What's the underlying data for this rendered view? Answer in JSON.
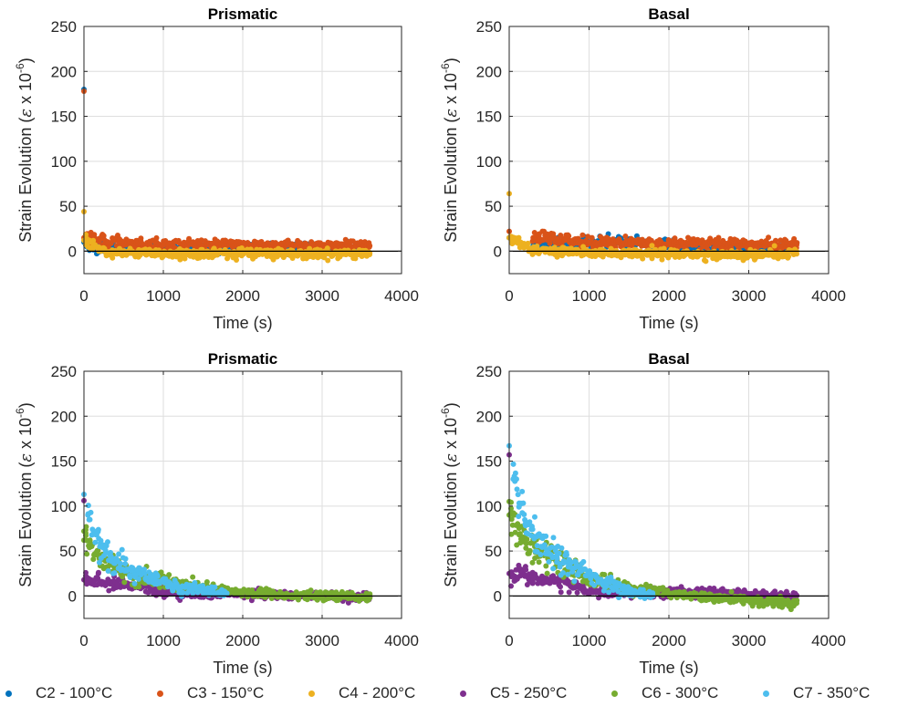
{
  "series_styles": [
    {
      "name": "C2 - 100°C",
      "color": "#0072BD"
    },
    {
      "name": "C3 - 150°C",
      "color": "#D95319"
    },
    {
      "name": "C4 - 200°C",
      "color": "#EDB120"
    },
    {
      "name": "C5 - 250°C",
      "color": "#7E2F8E"
    },
    {
      "name": "C6 - 300°C",
      "color": "#77AC30"
    },
    {
      "name": "C7 - 350°C",
      "color": "#4DBEEE"
    }
  ],
  "chart_data": [
    {
      "type": "scatter",
      "title": "Prismatic",
      "xlabel": "Time (s)",
      "ylabel_main": "Strain Evolution (",
      "ylabel_sym": "ε",
      "ylabel_mid": " x 10",
      "ylabel_exp": "-6",
      "ylabel_end": ")",
      "xlim": [
        0,
        4000
      ],
      "ylim": [
        -25,
        250
      ],
      "xticks": [
        0,
        1000,
        2000,
        3000,
        4000
      ],
      "yticks": [
        0,
        50,
        100,
        150,
        200,
        250
      ],
      "grid": true,
      "series": [
        {
          "name": "C2 - 100°C",
          "points": [
            [
              0,
              180
            ],
            [
              0,
              10
            ],
            [
              50,
              5
            ],
            [
              500,
              2
            ],
            [
              1500,
              3
            ],
            [
              2500,
              3
            ],
            [
              3500,
              3
            ]
          ]
        },
        {
          "name": "C3 - 150°C",
          "points": [
            [
              0,
              178
            ],
            [
              0,
              15
            ],
            [
              300,
              10
            ],
            [
              1000,
              7
            ],
            [
              2000,
              7
            ],
            [
              3000,
              6
            ],
            [
              3600,
              6
            ]
          ]
        },
        {
          "name": "C4 - 200°C",
          "points": [
            [
              0,
              44
            ],
            [
              0,
              12
            ],
            [
              300,
              -2
            ],
            [
              1000,
              -3
            ],
            [
              2000,
              -2
            ],
            [
              3000,
              -3
            ],
            [
              3600,
              -2
            ]
          ]
        }
      ]
    },
    {
      "type": "scatter",
      "title": "Basal",
      "xlabel": "Time (s)",
      "ylabel_main": "Strain Evolution (",
      "ylabel_sym": "ε",
      "ylabel_mid": " x 10",
      "ylabel_exp": "-6",
      "ylabel_end": ")",
      "xlim": [
        0,
        4000
      ],
      "ylim": [
        -25,
        250
      ],
      "xticks": [
        0,
        1000,
        2000,
        3000,
        4000
      ],
      "yticks": [
        0,
        50,
        100,
        150,
        200,
        250
      ],
      "grid": true,
      "series": [
        {
          "name": "C2 - 100°C",
          "points": [
            [
              0,
              15
            ],
            [
              300,
              6
            ],
            [
              1400,
              10
            ],
            [
              2500,
              2
            ],
            [
              3500,
              2
            ]
          ]
        },
        {
          "name": "C3 - 150°C",
          "points": [
            [
              0,
              22
            ],
            [
              300,
              15
            ],
            [
              1000,
              10
            ],
            [
              2000,
              9
            ],
            [
              3000,
              8
            ],
            [
              3600,
              7
            ]
          ]
        },
        {
          "name": "C4 - 200°C",
          "points": [
            [
              0,
              64
            ],
            [
              0,
              15
            ],
            [
              300,
              2
            ],
            [
              1000,
              -2
            ],
            [
              2000,
              -3
            ],
            [
              3000,
              -4
            ],
            [
              3600,
              -3
            ]
          ]
        }
      ]
    },
    {
      "type": "scatter",
      "title": "Prismatic",
      "xlabel": "Time (s)",
      "ylabel_main": "Strain Evolution (",
      "ylabel_sym": "ε",
      "ylabel_mid": " x 10",
      "ylabel_exp": "-6",
      "ylabel_end": ")",
      "xlim": [
        0,
        4000
      ],
      "ylim": [
        -25,
        250
      ],
      "xticks": [
        0,
        1000,
        2000,
        3000,
        4000
      ],
      "yticks": [
        0,
        50,
        100,
        150,
        200,
        250
      ],
      "grid": true,
      "series": [
        {
          "name": "C5 - 250°C",
          "points": [
            [
              0,
              106
            ],
            [
              0,
              18
            ],
            [
              300,
              15
            ],
            [
              700,
              12
            ],
            [
              1000,
              4
            ],
            [
              1500,
              2
            ],
            [
              2000,
              3
            ],
            [
              3000,
              0
            ],
            [
              3600,
              -1
            ]
          ]
        },
        {
          "name": "C6 - 300°C",
          "points": [
            [
              0,
              72
            ],
            [
              0,
              62
            ],
            [
              200,
              40
            ],
            [
              600,
              25
            ],
            [
              1000,
              15
            ],
            [
              1500,
              8
            ],
            [
              2000,
              4
            ],
            [
              3000,
              0
            ],
            [
              3600,
              -2
            ]
          ]
        },
        {
          "name": "C7 - 350°C",
          "points": [
            [
              0,
              113
            ],
            [
              50,
              90
            ],
            [
              200,
              55
            ],
            [
              400,
              38
            ],
            [
              600,
              28
            ],
            [
              900,
              17
            ],
            [
              1200,
              10
            ],
            [
              1500,
              6
            ],
            [
              1800,
              3
            ]
          ]
        }
      ]
    },
    {
      "type": "scatter",
      "title": "Basal",
      "xlabel": "Time (s)",
      "ylabel_main": "Strain Evolution (",
      "ylabel_sym": "ε",
      "ylabel_mid": " x 10",
      "ylabel_exp": "-6",
      "ylabel_end": ")",
      "xlim": [
        0,
        4000
      ],
      "ylim": [
        -25,
        250
      ],
      "xticks": [
        0,
        1000,
        2000,
        3000,
        4000
      ],
      "yticks": [
        0,
        50,
        100,
        150,
        200,
        250
      ],
      "grid": true,
      "series": [
        {
          "name": "C5 - 250°C",
          "points": [
            [
              0,
              157
            ],
            [
              0,
              25
            ],
            [
              300,
              20
            ],
            [
              700,
              15
            ],
            [
              1000,
              5
            ],
            [
              1500,
              3
            ],
            [
              2000,
              4
            ],
            [
              3000,
              2
            ],
            [
              3600,
              0
            ]
          ]
        },
        {
          "name": "C6 - 300°C",
          "points": [
            [
              0,
              105
            ],
            [
              0,
              90
            ],
            [
              200,
              60
            ],
            [
              600,
              40
            ],
            [
              1000,
              20
            ],
            [
              1500,
              10
            ],
            [
              2000,
              3
            ],
            [
              3000,
              -5
            ],
            [
              3600,
              -8
            ]
          ]
        },
        {
          "name": "C7 - 350°C",
          "points": [
            [
              0,
              167
            ],
            [
              50,
              130
            ],
            [
              200,
              80
            ],
            [
              400,
              55
            ],
            [
              600,
              42
            ],
            [
              900,
              28
            ],
            [
              1200,
              15
            ],
            [
              1500,
              5
            ],
            [
              1800,
              0
            ]
          ]
        }
      ]
    }
  ]
}
